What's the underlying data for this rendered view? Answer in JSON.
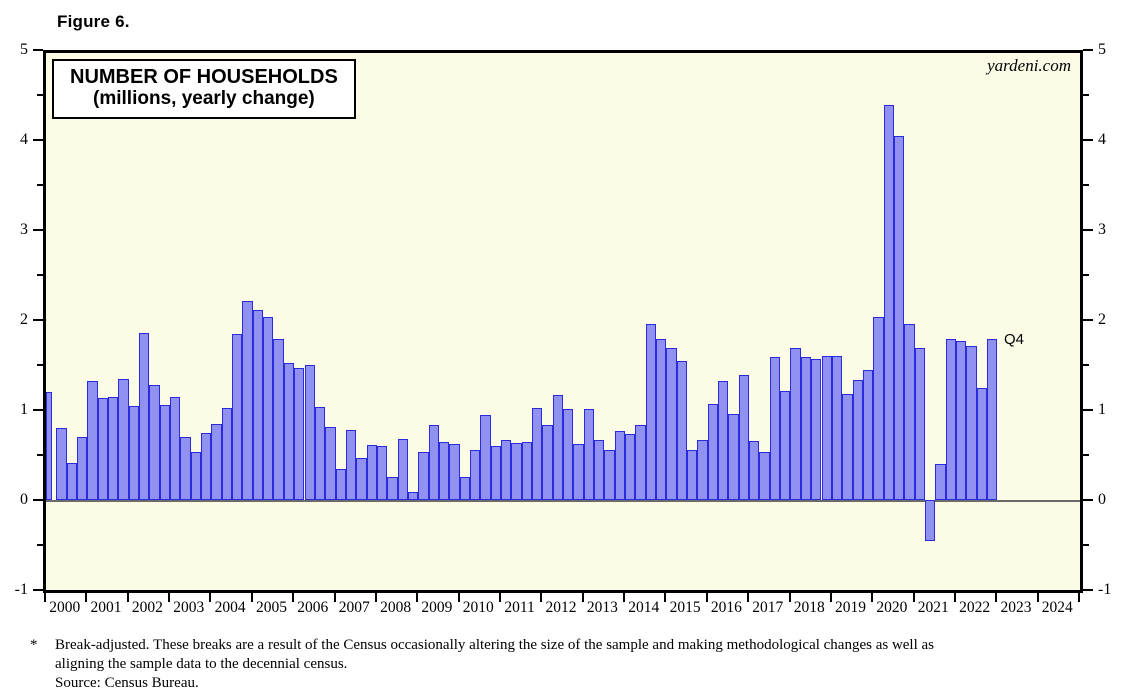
{
  "figure_label": "Figure 6.",
  "watermark": "yardeni.com",
  "annotation_q4": "Q4",
  "chart_data": {
    "type": "bar",
    "title": "NUMBER OF HOUSEHOLDS",
    "subtitle": "(millions, yearly change)",
    "period": "quarterly",
    "start_quarter": "2000 Q1",
    "end_quarter": "2022 Q4",
    "x_year_labels": [
      "2000",
      "2001",
      "2002",
      "2003",
      "2004",
      "2005",
      "2006",
      "2007",
      "2008",
      "2009",
      "2010",
      "2011",
      "2012",
      "2013",
      "2014",
      "2015",
      "2016",
      "2017",
      "2018",
      "2019",
      "2020",
      "2021",
      "2022",
      "2023",
      "2024"
    ],
    "y_major_ticks": [
      -1,
      0,
      1,
      2,
      3,
      4,
      5
    ],
    "y_minor_ticks": [
      -0.5,
      0.5,
      1.5,
      2.5,
      3.5,
      4.5
    ],
    "ylim": [
      -1,
      5
    ],
    "grid": false,
    "zero_line": true,
    "legend": "none",
    "values": [
      1.2,
      0.8,
      0.41,
      0.7,
      1.32,
      1.13,
      1.14,
      1.34,
      1.04,
      1.86,
      1.28,
      1.06,
      1.15,
      0.7,
      0.53,
      0.74,
      0.84,
      1.02,
      1.85,
      2.21,
      2.11,
      2.03,
      1.79,
      1.52,
      1.47,
      1.5,
      1.03,
      0.81,
      0.35,
      0.78,
      0.47,
      0.61,
      0.6,
      0.26,
      0.68,
      0.09,
      0.53,
      0.83,
      0.65,
      0.62,
      0.26,
      0.56,
      0.95,
      0.6,
      0.67,
      0.63,
      0.65,
      1.02,
      0.83,
      1.17,
      1.01,
      0.62,
      1.01,
      0.67,
      0.56,
      0.77,
      0.73,
      0.83,
      1.96,
      1.79,
      1.69,
      1.54,
      0.56,
      0.67,
      1.07,
      1.32,
      0.96,
      1.39,
      0.66,
      0.53,
      1.59,
      1.21,
      1.69,
      1.59,
      1.57,
      1.6,
      1.6,
      1.18,
      1.33,
      1.44,
      2.03,
      4.39,
      4.04,
      1.96,
      1.69,
      -0.45,
      0.4,
      1.79,
      1.77,
      1.71,
      1.25,
      1.79
    ],
    "colors": {
      "bar_fill": "#9191f2",
      "bar_border": "#2b2bde",
      "plot_background": "#fbfbe6",
      "frame": "#000000",
      "zero_line": "#6a6a6a"
    }
  },
  "footnote": {
    "marker": "*",
    "line1": "Break-adjusted. These breaks are a result of the Census occasionally altering the size of the sample and making methodological changes as well as",
    "line2": "aligning the sample data to the decennial census.",
    "source": "Source: Census Bureau."
  }
}
